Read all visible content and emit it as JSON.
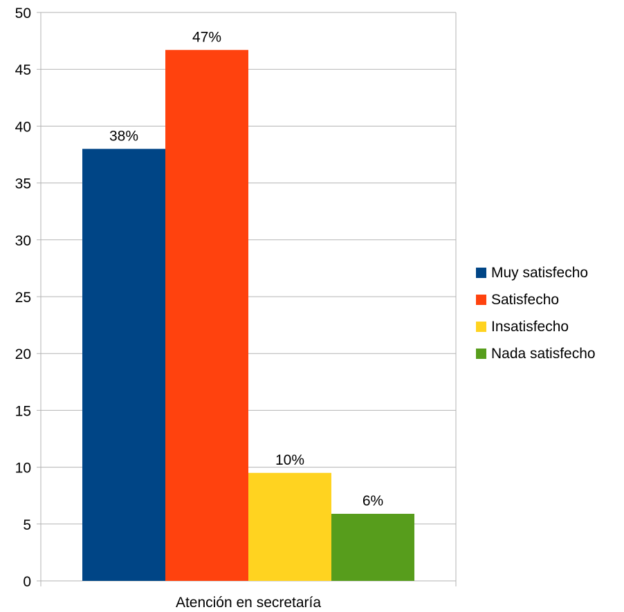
{
  "chart_data": {
    "type": "bar",
    "categories": [
      "Atención en secretaría"
    ],
    "series": [
      {
        "name": "Muy satisfecho",
        "values": [
          38
        ],
        "label": "38%",
        "color": "#004586"
      },
      {
        "name": "Satisfecho",
        "values": [
          46.7
        ],
        "label": "47%",
        "color": "#ff420e"
      },
      {
        "name": "Insatisfecho",
        "values": [
          9.5
        ],
        "label": "10%",
        "color": "#ffd320"
      },
      {
        "name": "Nada satisfecho",
        "values": [
          5.9
        ],
        "label": "6%",
        "color": "#579d1c"
      }
    ],
    "ylim": [
      0,
      50
    ],
    "yticks": [
      0,
      5,
      10,
      15,
      20,
      25,
      30,
      35,
      40,
      45,
      50
    ],
    "grid": true,
    "legend_position": "right"
  }
}
